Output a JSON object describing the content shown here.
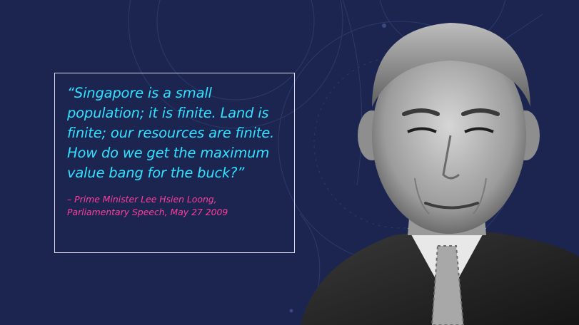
{
  "slide": {
    "background_color": "#1b2550",
    "quote": {
      "text": "“Singapore is a small population; it is finite. Land is finite; our resources are finite. How do we get the maximum value bang for the buck?”",
      "color": "#33e0ff"
    },
    "attribution": {
      "line1": "– Prime Minister Lee Hsien Loong,",
      "line2": "Parliamentary Speech, May 27 2009",
      "color": "#ff3f9e"
    },
    "portrait": {
      "icon": "portrait-photo-icon"
    }
  }
}
